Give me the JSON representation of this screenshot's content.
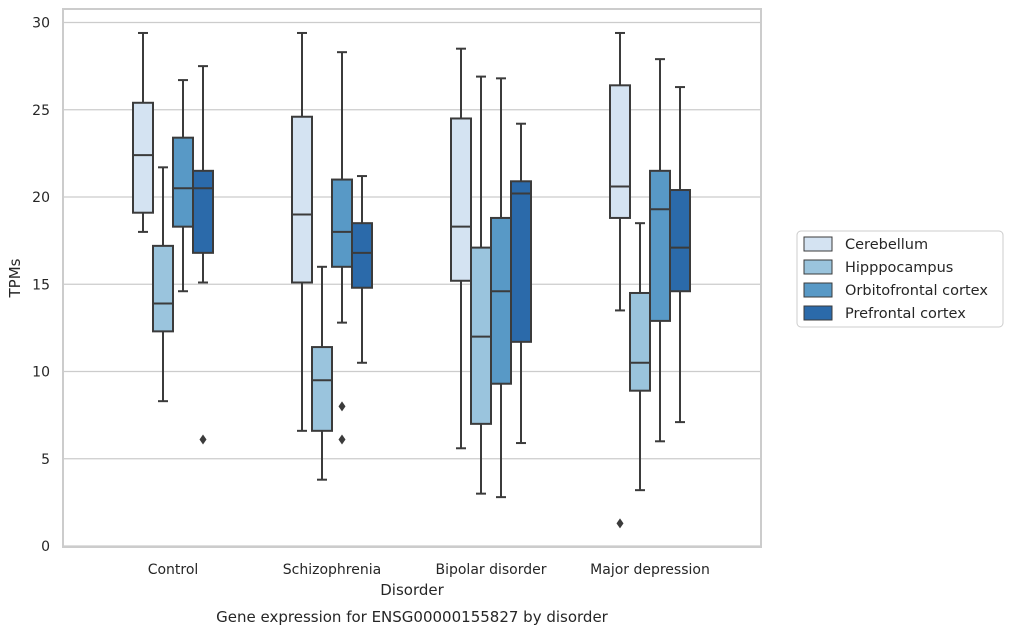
{
  "chart_data": {
    "type": "box",
    "caption": "Gene expression for ENSG00000155827 by disorder",
    "xlabel": "Disorder",
    "ylabel": "TPMs",
    "ylim": [
      0,
      30
    ],
    "yticks": [
      0,
      5,
      10,
      15,
      20,
      25,
      30
    ],
    "grid": "horizontal",
    "legend_position": "right",
    "categories": [
      "Control",
      "Schizophrenia",
      "Bipolar disorder",
      "Major depression"
    ],
    "series": [
      {
        "name": "Cerebellum",
        "color": "#d4e3f2",
        "boxes": [
          {
            "whisker_low": 18.0,
            "q1": 19.1,
            "median": 22.4,
            "q3": 25.4,
            "whisker_high": 29.4,
            "outliers": []
          },
          {
            "whisker_low": 6.6,
            "q1": 15.1,
            "median": 19.0,
            "q3": 24.6,
            "whisker_high": 29.4,
            "outliers": []
          },
          {
            "whisker_low": 5.6,
            "q1": 15.2,
            "median": 18.3,
            "q3": 24.5,
            "whisker_high": 28.5,
            "outliers": []
          },
          {
            "whisker_low": 13.5,
            "q1": 18.8,
            "median": 20.6,
            "q3": 26.4,
            "whisker_high": 29.4,
            "outliers": [
              1.3
            ]
          }
        ]
      },
      {
        "name": "Hipppocampus",
        "color": "#9ac4dd",
        "boxes": [
          {
            "whisker_low": 8.3,
            "q1": 12.3,
            "median": 13.9,
            "q3": 17.2,
            "whisker_high": 21.7,
            "outliers": []
          },
          {
            "whisker_low": 3.8,
            "q1": 6.6,
            "median": 9.5,
            "q3": 11.4,
            "whisker_high": 16.0,
            "outliers": []
          },
          {
            "whisker_low": 3.0,
            "q1": 7.0,
            "median": 12.0,
            "q3": 17.1,
            "whisker_high": 26.9,
            "outliers": []
          },
          {
            "whisker_low": 3.2,
            "q1": 8.9,
            "median": 10.5,
            "q3": 14.5,
            "whisker_high": 18.5,
            "outliers": []
          }
        ]
      },
      {
        "name": "Orbitofrontal cortex",
        "color": "#5899c6",
        "boxes": [
          {
            "whisker_low": 14.6,
            "q1": 18.3,
            "median": 20.5,
            "q3": 23.4,
            "whisker_high": 26.7,
            "outliers": []
          },
          {
            "whisker_low": 12.8,
            "q1": 16.0,
            "median": 18.0,
            "q3": 21.0,
            "whisker_high": 28.3,
            "outliers": [
              8.0,
              6.1
            ]
          },
          {
            "whisker_low": 2.8,
            "q1": 9.3,
            "median": 14.6,
            "q3": 18.8,
            "whisker_high": 26.8,
            "outliers": []
          },
          {
            "whisker_low": 6.0,
            "q1": 12.9,
            "median": 19.3,
            "q3": 21.5,
            "whisker_high": 27.9,
            "outliers": []
          }
        ]
      },
      {
        "name": "Prefrontal cortex",
        "color": "#2b6aaa",
        "boxes": [
          {
            "whisker_low": 15.1,
            "q1": 16.8,
            "median": 20.5,
            "q3": 21.5,
            "whisker_high": 27.5,
            "outliers": [
              6.1
            ]
          },
          {
            "whisker_low": 10.5,
            "q1": 14.8,
            "median": 16.8,
            "q3": 18.5,
            "whisker_high": 21.2,
            "outliers": []
          },
          {
            "whisker_low": 5.9,
            "q1": 11.7,
            "median": 20.2,
            "q3": 20.9,
            "whisker_high": 24.2,
            "outliers": []
          },
          {
            "whisker_low": 7.1,
            "q1": 14.6,
            "median": 17.1,
            "q3": 20.4,
            "whisker_high": 26.3,
            "outliers": []
          }
        ]
      }
    ]
  }
}
